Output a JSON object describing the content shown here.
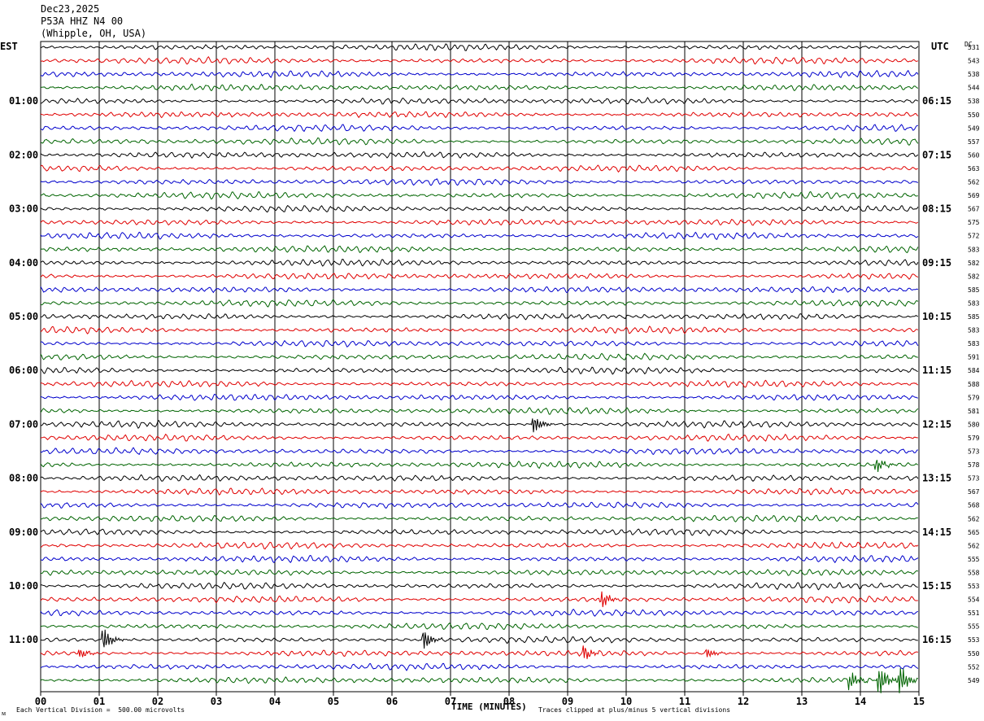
{
  "header": {
    "date": "Dec23,2025",
    "station": "P53A HHZ N4 00",
    "location": "(Whipple, OH, USA)"
  },
  "left_tz": "EST",
  "right_tz": "UTC",
  "dc_label": "DC",
  "footer": {
    "scale_note": "Each Vertical Division =  500.00 microvolts",
    "clip_note": "Traces clipped at plus/minus 5 vertical divisions",
    "corner_mark": "ᴍ"
  },
  "colors": {
    "cycle": [
      "#000000",
      "#e00000",
      "#0000cc",
      "#006400"
    ],
    "grid": "#000000"
  },
  "chart_data": {
    "type": "line",
    "xlabel": "TIME (MINUTES)",
    "xlim": [
      0,
      15
    ],
    "x_ticks": [
      "00",
      "01",
      "02",
      "03",
      "04",
      "05",
      "06",
      "07",
      "08",
      "09",
      "10",
      "11",
      "12",
      "13",
      "14",
      "15"
    ],
    "minutes_per_trace": 15,
    "trace_count": 48,
    "left_hour_labels": [
      "01:00",
      "02:00",
      "03:00",
      "04:00",
      "05:00",
      "06:00",
      "07:00",
      "08:00",
      "09:00",
      "10:00",
      "11:00"
    ],
    "right_hour_labels": [
      "06:15",
      "07:15",
      "08:15",
      "09:15",
      "10:15",
      "11:15",
      "12:15",
      "13:15",
      "14:15",
      "15:15",
      "16:15"
    ],
    "dc_offsets": [
      "531",
      "543",
      "538",
      "544",
      "538",
      "550",
      "549",
      "557",
      "560",
      "563",
      "562",
      "569",
      "567",
      "575",
      "572",
      "583",
      "582",
      "582",
      "585",
      "583",
      "585",
      "583",
      "583",
      "591",
      "584",
      "588",
      "579",
      "581",
      "580",
      "579",
      "573",
      "578",
      "573",
      "567",
      "568",
      "562",
      "565",
      "562",
      "555",
      "558",
      "553",
      "554",
      "551",
      "555",
      "553",
      "550",
      "552",
      "549"
    ],
    "events": [
      {
        "trace": 28,
        "minute": 8.45,
        "amplitude": 3
      },
      {
        "trace": 31,
        "minute": 14.3,
        "amplitude": 2.5
      },
      {
        "trace": 41,
        "minute": 9.6,
        "amplitude": 3
      },
      {
        "trace": 44,
        "minute": 1.1,
        "amplitude": 4
      },
      {
        "trace": 44,
        "minute": 6.55,
        "amplitude": 4
      },
      {
        "trace": 45,
        "minute": 0.7,
        "amplitude": 1.6
      },
      {
        "trace": 45,
        "minute": 9.3,
        "amplitude": 2.6
      },
      {
        "trace": 45,
        "minute": 11.4,
        "amplitude": 1.8
      },
      {
        "trace": 47,
        "minute": 13.85,
        "amplitude": 3
      },
      {
        "trace": 47,
        "minute": 14.35,
        "amplitude": 5
      },
      {
        "trace": 47,
        "minute": 14.7,
        "amplitude": 5
      }
    ]
  }
}
